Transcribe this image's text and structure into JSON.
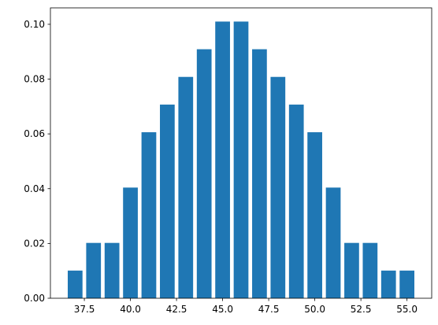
{
  "chart_data": {
    "type": "bar",
    "x": [
      37,
      38,
      39,
      40,
      41,
      42,
      43,
      44,
      45,
      46,
      47,
      48,
      49,
      50,
      51,
      52,
      53,
      54,
      55
    ],
    "values": [
      0.0101,
      0.0202,
      0.0202,
      0.0404,
      0.0606,
      0.0707,
      0.0808,
      0.0909,
      0.101,
      0.101,
      0.0909,
      0.0808,
      0.0707,
      0.0606,
      0.0404,
      0.0202,
      0.0202,
      0.0101,
      0.0101
    ],
    "color": "#1f77b4",
    "bar_width": 0.8,
    "xlim": [
      35.66,
      56.34
    ],
    "xticks": [
      37.5,
      {
        "value": 40,
        "label": "40.0"
      },
      42.5,
      {
        "value": 45,
        "label": "45.0"
      },
      47.5,
      {
        "value": 50,
        "label": "50.0"
      },
      52.5,
      {
        "value": 55,
        "label": "55.0"
      }
    ],
    "ylim": [
      0,
      0.106
    ],
    "yticks": [
      {
        "value": 0,
        "label": "0.00"
      },
      {
        "value": 0.02,
        "label": "0.02"
      },
      {
        "value": 0.04,
        "label": "0.04"
      },
      {
        "value": 0.06,
        "label": "0.06"
      },
      {
        "value": 0.08,
        "label": "0.08"
      },
      {
        "value": 0.1,
        "label": "0.10"
      }
    ],
    "grid": false
  }
}
